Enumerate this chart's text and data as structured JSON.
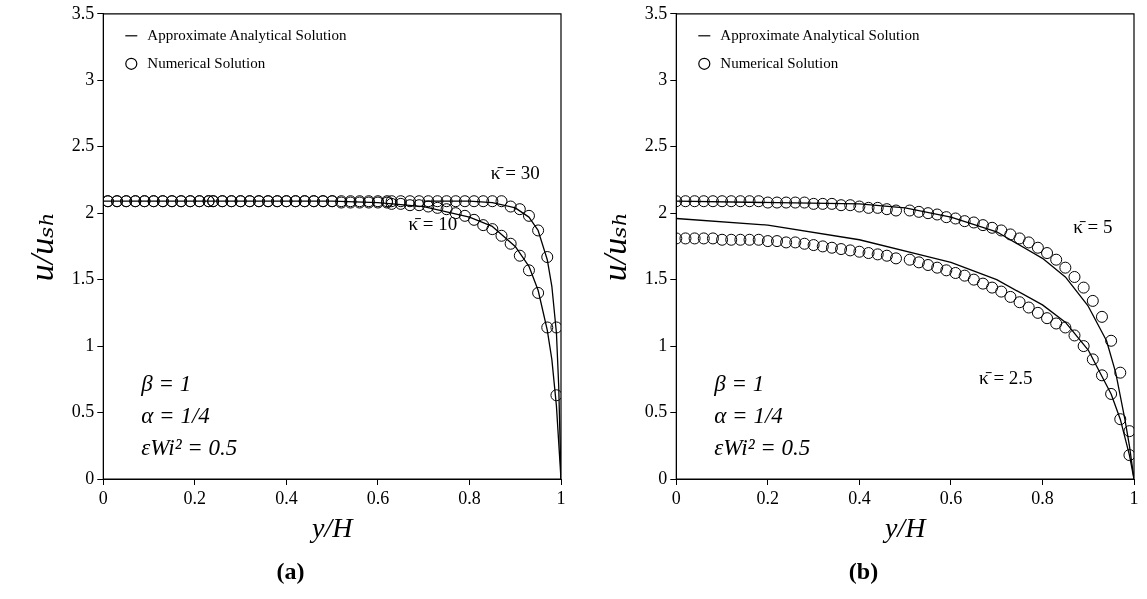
{
  "chart_data": [
    {
      "type": "line",
      "title": "(a)",
      "xlabel": "y/H",
      "ylabel": "u/uₛₕ",
      "xlim": [
        0,
        1
      ],
      "ylim": [
        0,
        3.5
      ],
      "xticks": [
        0,
        0.2,
        0.4,
        0.6,
        0.8,
        1
      ],
      "yticks": [
        0,
        0.5,
        1,
        1.5,
        2,
        2.5,
        3,
        3.5
      ],
      "legend": "top left",
      "series": [
        {
          "type": "line",
          "name": "Approximate Analytical Solution",
          "color": "#000000",
          "marker": "none",
          "x": [
            0.7,
            0.8,
            0.85,
            0.9,
            0.93,
            0.95,
            0.97,
            0.98,
            0.99,
            0.995,
            1
          ],
          "values": [
            2.09,
            2.09,
            2.08,
            2.04,
            1.97,
            1.87,
            1.65,
            1.45,
            1.1,
            0.7,
            0
          ]
        },
        {
          "type": "line",
          "color": "#000000",
          "marker": "none",
          "x": [
            0,
            0.5,
            0.6,
            0.7,
            0.8,
            0.85,
            0.9,
            0.93,
            0.95,
            0.97,
            0.98,
            0.99,
            1
          ],
          "values": [
            2.09,
            2.09,
            2.08,
            2.05,
            1.97,
            1.9,
            1.75,
            1.6,
            1.42,
            1.12,
            0.9,
            0.55,
            0
          ]
        },
        {
          "type": "scatter",
          "name": "Numerical Solution",
          "color": "#000000",
          "marker": "circle",
          "x": [
            0.01,
            0.03,
            0.05,
            0.07,
            0.09,
            0.11,
            0.13,
            0.15,
            0.17,
            0.19,
            0.21,
            0.23,
            0.24,
            0.26,
            0.28,
            0.3,
            0.32,
            0.34,
            0.36,
            0.38,
            0.4,
            0.42,
            0.44,
            0.46,
            0.48,
            0.5,
            0.52,
            0.54,
            0.56,
            0.58,
            0.6,
            0.62,
            0.63,
            0.65,
            0.67,
            0.69,
            0.71,
            0.73,
            0.75,
            0.77,
            0.79,
            0.81,
            0.83,
            0.85,
            0.87,
            0.89,
            0.91,
            0.93,
            0.95,
            0.97,
            0.99,
            0.99
          ],
          "values": [
            2.09,
            2.09,
            2.09,
            2.09,
            2.09,
            2.09,
            2.09,
            2.09,
            2.09,
            2.09,
            2.09,
            2.09,
            2.09,
            2.09,
            2.09,
            2.09,
            2.09,
            2.09,
            2.09,
            2.09,
            2.09,
            2.09,
            2.09,
            2.09,
            2.09,
            2.09,
            2.09,
            2.09,
            2.09,
            2.09,
            2.09,
            2.09,
            2.09,
            2.09,
            2.09,
            2.09,
            2.09,
            2.09,
            2.09,
            2.09,
            2.09,
            2.09,
            2.09,
            2.09,
            2.09,
            2.05,
            2.03,
            1.98,
            1.87,
            1.67,
            1.14,
            0.63
          ]
        },
        {
          "type": "scatter",
          "color": "#000000",
          "marker": "circle",
          "x": [
            0.01,
            0.03,
            0.05,
            0.07,
            0.09,
            0.11,
            0.13,
            0.15,
            0.17,
            0.19,
            0.21,
            0.23,
            0.24,
            0.26,
            0.28,
            0.3,
            0.32,
            0.34,
            0.36,
            0.38,
            0.4,
            0.42,
            0.44,
            0.46,
            0.48,
            0.5,
            0.52,
            0.54,
            0.56,
            0.58,
            0.6,
            0.62,
            0.63,
            0.65,
            0.67,
            0.69,
            0.71,
            0.73,
            0.75,
            0.77,
            0.79,
            0.81,
            0.83,
            0.85,
            0.87,
            0.89,
            0.91,
            0.93,
            0.95,
            0.97
          ],
          "values": [
            2.09,
            2.09,
            2.09,
            2.09,
            2.09,
            2.09,
            2.09,
            2.09,
            2.09,
            2.09,
            2.09,
            2.09,
            2.09,
            2.09,
            2.09,
            2.09,
            2.09,
            2.09,
            2.09,
            2.09,
            2.09,
            2.09,
            2.09,
            2.09,
            2.09,
            2.09,
            2.08,
            2.08,
            2.08,
            2.08,
            2.08,
            2.08,
            2.07,
            2.07,
            2.06,
            2.06,
            2.05,
            2.04,
            2.03,
            2.0,
            1.98,
            1.95,
            1.91,
            1.88,
            1.83,
            1.77,
            1.68,
            1.57,
            1.4,
            1.14
          ]
        }
      ],
      "annotations": [
        "κ̄ = 30",
        "κ̄ = 10",
        "β = 1",
        "α = 1/4",
        "εWi² = 0.5"
      ]
    },
    {
      "type": "line",
      "title": "(b)",
      "xlabel": "y/H",
      "ylabel": "u/uₛₕ",
      "xlim": [
        0,
        1
      ],
      "ylim": [
        0,
        3.5
      ],
      "xticks": [
        0,
        0.2,
        0.4,
        0.6,
        0.8,
        1
      ],
      "yticks": [
        0,
        0.5,
        1,
        1.5,
        2,
        2.5,
        3,
        3.5
      ],
      "legend": "top left",
      "series": [
        {
          "type": "line",
          "name": "Approximate Analytical Solution",
          "color": "#000000",
          "marker": "none",
          "x": [
            0,
            0.4,
            0.5,
            0.6,
            0.7,
            0.8,
            0.85,
            0.9,
            0.94,
            0.96,
            0.98,
            0.99,
            1
          ],
          "values": [
            2.09,
            2.07,
            2.04,
            1.97,
            1.86,
            1.66,
            1.52,
            1.3,
            1.04,
            0.8,
            0.45,
            0.25,
            0
          ]
        },
        {
          "type": "line",
          "color": "#000000",
          "marker": "none",
          "x": [
            0,
            0.2,
            0.4,
            0.6,
            0.7,
            0.8,
            0.85,
            0.9,
            0.95,
            0.97,
            0.99,
            1
          ],
          "values": [
            1.96,
            1.91,
            1.8,
            1.63,
            1.5,
            1.31,
            1.18,
            0.97,
            0.64,
            0.45,
            0.18,
            0
          ]
        },
        {
          "type": "scatter",
          "name": "Numerical Solution",
          "color": "#000000",
          "marker": "circle",
          "x": [
            0,
            0.02,
            0.04,
            0.06,
            0.08,
            0.1,
            0.12,
            0.14,
            0.16,
            0.18,
            0.2,
            0.22,
            0.24,
            0.26,
            0.28,
            0.3,
            0.32,
            0.34,
            0.36,
            0.38,
            0.4,
            0.42,
            0.44,
            0.46,
            0.48,
            0.51,
            0.53,
            0.55,
            0.57,
            0.59,
            0.61,
            0.63,
            0.65,
            0.67,
            0.69,
            0.71,
            0.73,
            0.75,
            0.77,
            0.79,
            0.81,
            0.83,
            0.85,
            0.87,
            0.89,
            0.91,
            0.93,
            0.95,
            0.97,
            0.99
          ],
          "values": [
            2.09,
            2.09,
            2.09,
            2.09,
            2.09,
            2.09,
            2.09,
            2.09,
            2.09,
            2.09,
            2.08,
            2.08,
            2.08,
            2.08,
            2.08,
            2.07,
            2.07,
            2.07,
            2.06,
            2.06,
            2.05,
            2.04,
            2.04,
            2.03,
            2.02,
            2.02,
            2.01,
            2.0,
            1.99,
            1.97,
            1.96,
            1.94,
            1.93,
            1.91,
            1.89,
            1.87,
            1.84,
            1.81,
            1.78,
            1.74,
            1.7,
            1.65,
            1.59,
            1.52,
            1.44,
            1.34,
            1.22,
            1.04,
            0.8,
            0.36
          ]
        },
        {
          "type": "scatter",
          "color": "#000000",
          "marker": "circle",
          "x": [
            0,
            0.02,
            0.04,
            0.06,
            0.08,
            0.1,
            0.12,
            0.14,
            0.16,
            0.18,
            0.2,
            0.22,
            0.24,
            0.26,
            0.28,
            0.3,
            0.32,
            0.34,
            0.36,
            0.38,
            0.4,
            0.42,
            0.44,
            0.46,
            0.48,
            0.51,
            0.53,
            0.55,
            0.57,
            0.59,
            0.61,
            0.63,
            0.65,
            0.67,
            0.69,
            0.71,
            0.73,
            0.75,
            0.77,
            0.79,
            0.81,
            0.83,
            0.85,
            0.87,
            0.89,
            0.91,
            0.93,
            0.95,
            0.97,
            0.99
          ],
          "values": [
            1.81,
            1.81,
            1.81,
            1.81,
            1.81,
            1.8,
            1.8,
            1.8,
            1.8,
            1.8,
            1.79,
            1.79,
            1.78,
            1.78,
            1.77,
            1.76,
            1.75,
            1.74,
            1.73,
            1.72,
            1.71,
            1.7,
            1.69,
            1.68,
            1.66,
            1.65,
            1.63,
            1.61,
            1.59,
            1.57,
            1.55,
            1.53,
            1.5,
            1.47,
            1.44,
            1.41,
            1.37,
            1.33,
            1.29,
            1.25,
            1.21,
            1.17,
            1.14,
            1.08,
            1.0,
            0.9,
            0.78,
            0.64,
            0.45,
            0.18
          ]
        }
      ],
      "annotations": [
        "κ̄ = 5",
        "κ̄ = 2.5",
        "β = 1",
        "α = 1/4",
        "εWi² = 0.5"
      ]
    }
  ]
}
